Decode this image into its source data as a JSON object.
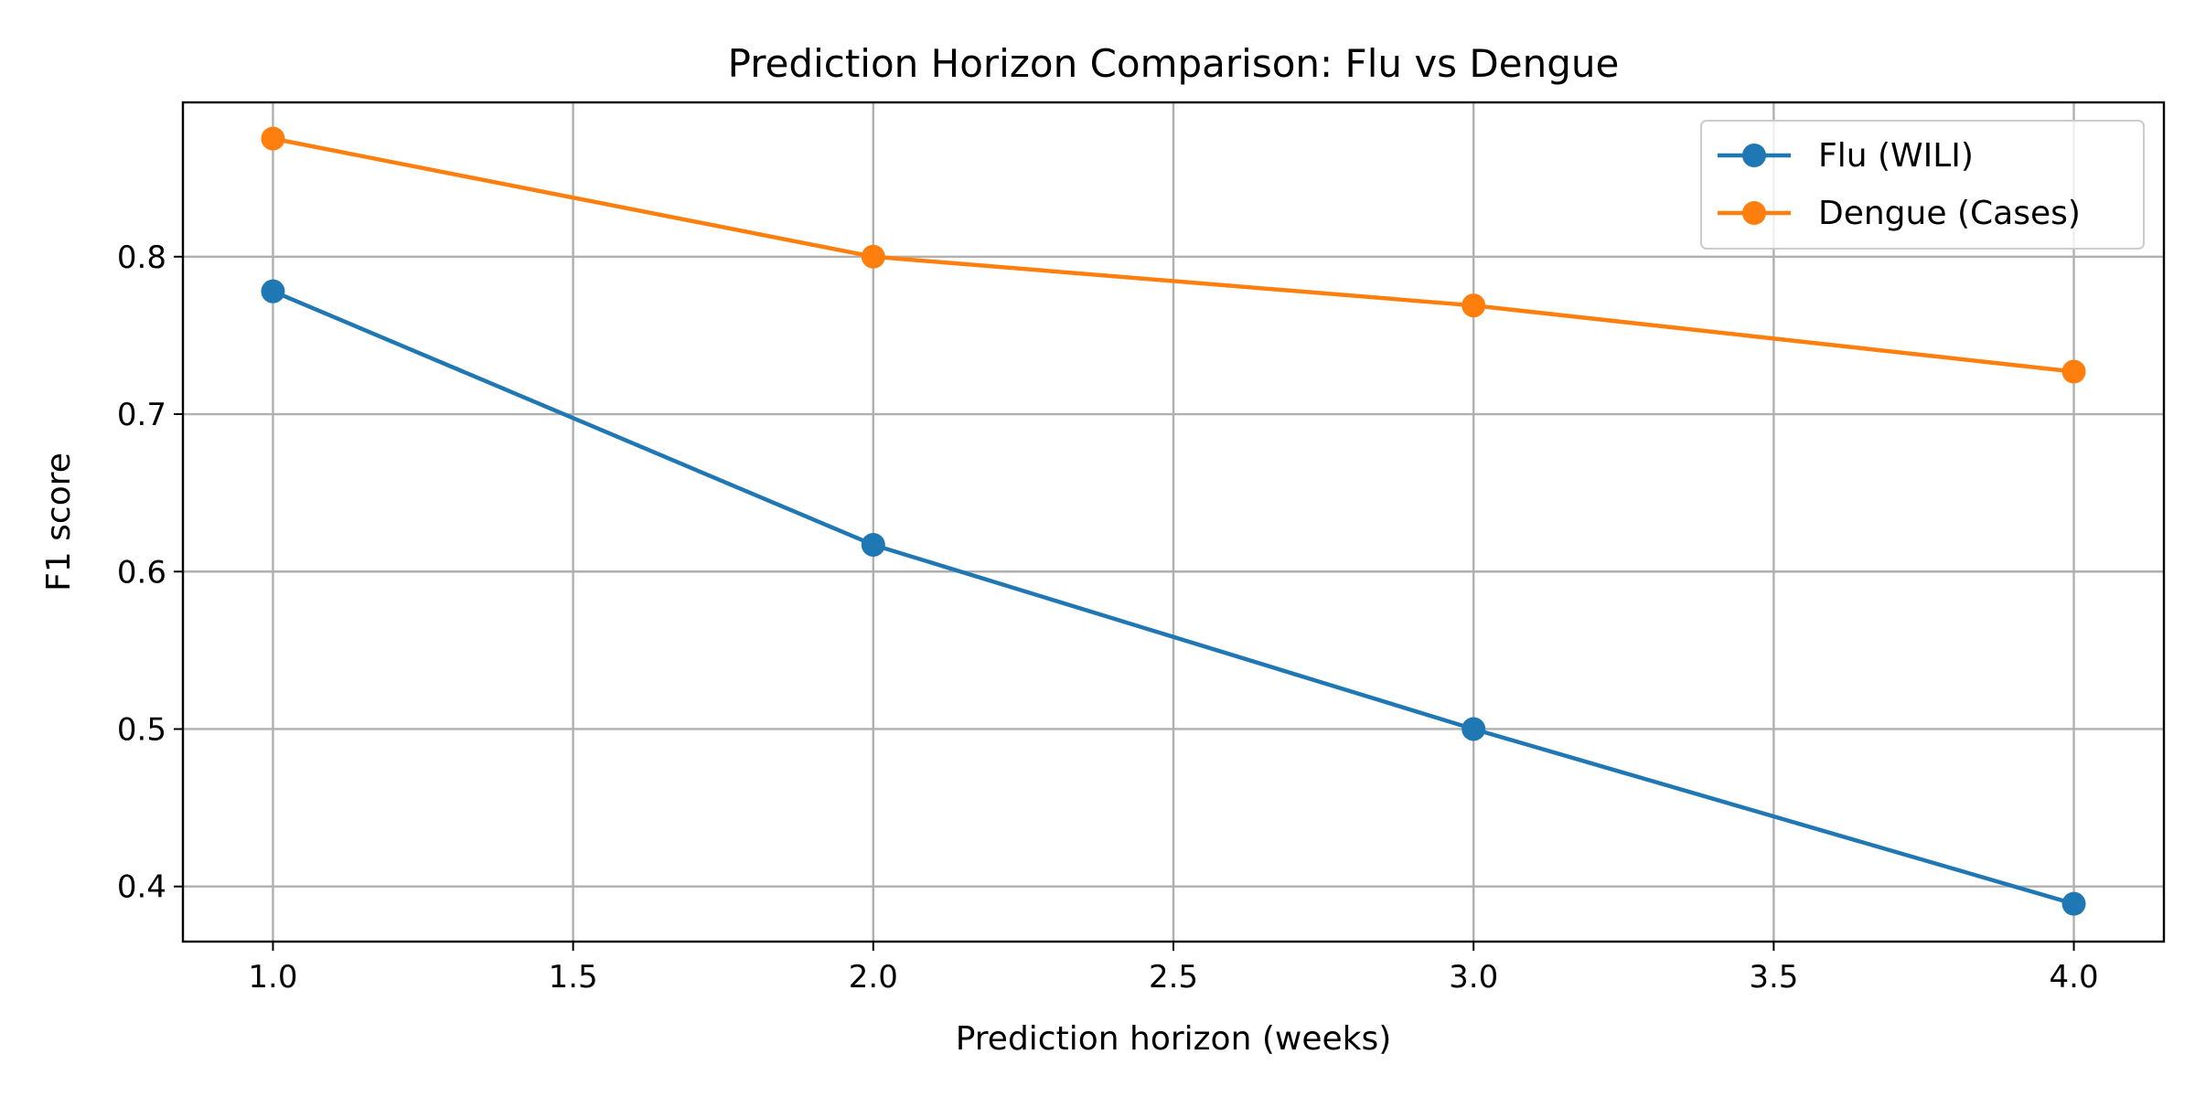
{
  "chart_data": {
    "type": "line",
    "title": "Prediction Horizon Comparison: Flu vs Dengue",
    "xlabel": "Prediction horizon (weeks)",
    "ylabel": "F1 score",
    "xlim": [
      0.85,
      4.15
    ],
    "ylim": [
      0.365,
      0.898
    ],
    "x_ticks": [
      1.0,
      1.5,
      2.0,
      2.5,
      3.0,
      3.5,
      4.0
    ],
    "x_tick_labels": [
      "1.0",
      "1.5",
      "2.0",
      "2.5",
      "3.0",
      "3.5",
      "4.0"
    ],
    "y_ticks": [
      0.4,
      0.5,
      0.6,
      0.7,
      0.8
    ],
    "y_tick_labels": [
      "0.4",
      "0.5",
      "0.6",
      "0.7",
      "0.8"
    ],
    "grid": true,
    "legend_position": "top-right",
    "x": [
      1.0,
      2.0,
      3.0,
      4.0
    ],
    "series": [
      {
        "name": "Flu (WILI)",
        "color": "#1f77b4",
        "values": [
          0.778,
          0.617,
          0.5,
          0.389
        ]
      },
      {
        "name": "Dengue (Cases)",
        "color": "#ff7f0e",
        "values": [
          0.875,
          0.8,
          0.769,
          0.727
        ]
      }
    ]
  }
}
